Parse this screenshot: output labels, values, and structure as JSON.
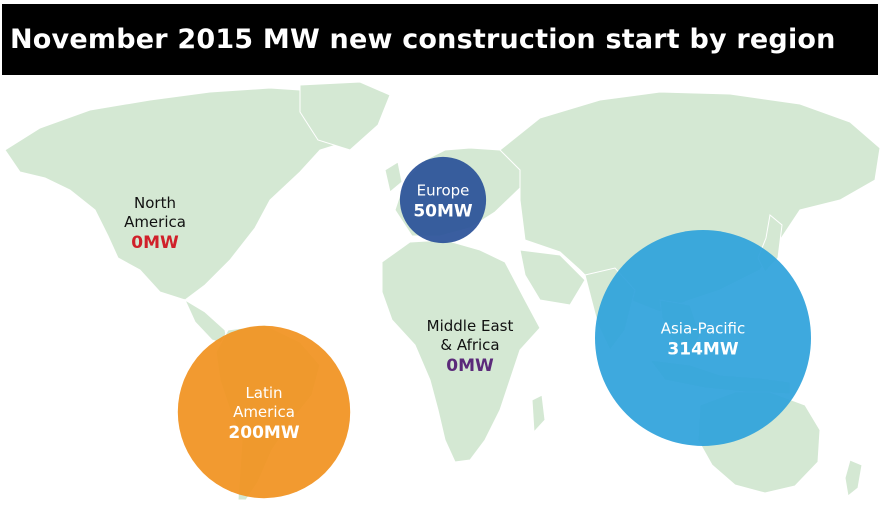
{
  "title": "November 2015 MW new construction start by region",
  "colors": {
    "land": "#d4e8d3",
    "title_bg": "#000000",
    "title_text": "#ffffff"
  },
  "chart_data": {
    "type": "bubble-map",
    "title": "November 2015 MW new construction start by region",
    "unit": "MW",
    "regions": [
      {
        "name_lines": [
          "North",
          "America"
        ],
        "value": 0,
        "value_label": "0MW",
        "bubble_color": null,
        "value_color": "#d0202a"
      },
      {
        "name_lines": [
          "Europe"
        ],
        "value": 50,
        "value_label": "50MW",
        "bubble_color": "#2b5299",
        "value_color": "#ffffff"
      },
      {
        "name_lines": [
          "Middle East",
          "& Africa"
        ],
        "value": 0,
        "value_label": "0MW",
        "bubble_color": null,
        "value_color": "#5b2a7a"
      },
      {
        "name_lines": [
          "Latin",
          "America"
        ],
        "value": 200,
        "value_label": "200MW",
        "bubble_color": "#f19220",
        "value_color": "#ffffff"
      },
      {
        "name_lines": [
          "Asia-Pacific"
        ],
        "value": 314,
        "value_label": "314MW",
        "bubble_color": "#2fa3dc",
        "value_color": "#ffffff"
      }
    ]
  }
}
